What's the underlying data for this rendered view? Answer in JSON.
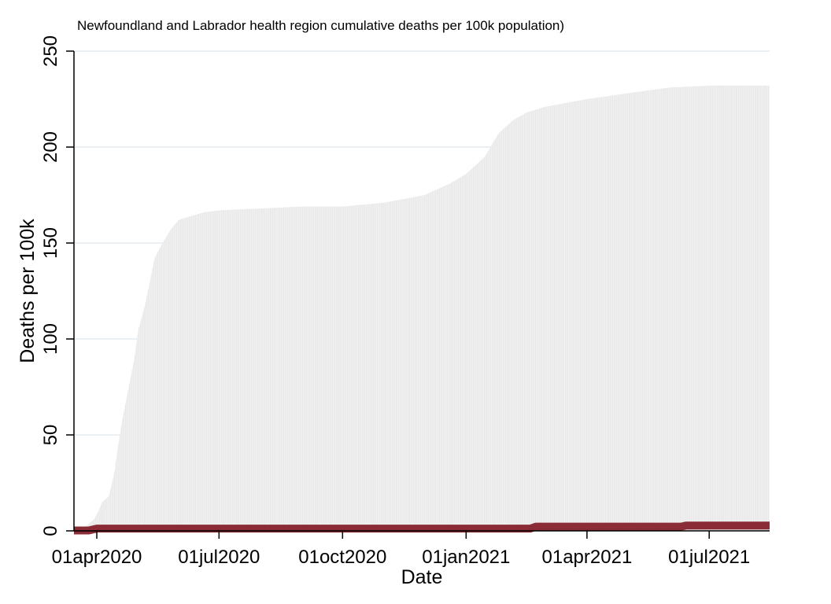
{
  "chart_data": {
    "type": "area",
    "title": "Newfoundland and Labrador health region cumulative deaths per 100k population)",
    "xlabel": "Date",
    "ylabel": "Deaths per 100k",
    "x_type": "date",
    "xlim": [
      "2020-03-15",
      "2021-08-15"
    ],
    "ylim": [
      0,
      250
    ],
    "y_ticks": [
      0,
      50,
      100,
      150,
      200,
      250
    ],
    "x_ticks": [
      {
        "date": "2020-04-01",
        "label": "01apr2020"
      },
      {
        "date": "2020-07-01",
        "label": "01jul2020"
      },
      {
        "date": "2020-10-01",
        "label": "01oct2020"
      },
      {
        "date": "2021-01-01",
        "label": "01jan2021"
      },
      {
        "date": "2021-04-01",
        "label": "01apr2021"
      },
      {
        "date": "2021-07-01",
        "label": "01jul2021"
      }
    ],
    "grid": true,
    "colors": {
      "area_fill": "#f2f2f2",
      "area_line": "#e6e6e6",
      "grid": "#dde7ec",
      "series_line": "#8b2b35",
      "axis": "#000000"
    },
    "series": [
      {
        "style": "area",
        "points": [
          [
            "2020-03-15",
            0
          ],
          [
            "2020-03-20",
            1
          ],
          [
            "2020-03-25",
            3
          ],
          [
            "2020-03-30",
            6
          ],
          [
            "2020-04-02",
            10
          ],
          [
            "2020-04-05",
            15
          ],
          [
            "2020-04-10",
            18
          ],
          [
            "2020-04-14",
            30
          ],
          [
            "2020-04-17",
            45
          ],
          [
            "2020-04-20",
            58
          ],
          [
            "2020-04-24",
            72
          ],
          [
            "2020-04-29",
            90
          ],
          [
            "2020-05-02",
            105
          ],
          [
            "2020-05-06",
            115
          ],
          [
            "2020-05-10",
            128
          ],
          [
            "2020-05-14",
            142
          ],
          [
            "2020-05-20",
            150
          ],
          [
            "2020-05-26",
            157
          ],
          [
            "2020-06-01",
            162
          ],
          [
            "2020-06-10",
            164
          ],
          [
            "2020-06-20",
            166
          ],
          [
            "2020-07-01",
            167
          ],
          [
            "2020-08-01",
            168
          ],
          [
            "2020-09-01",
            169
          ],
          [
            "2020-10-01",
            169
          ],
          [
            "2020-11-01",
            171
          ],
          [
            "2020-12-01",
            175
          ],
          [
            "2020-12-20",
            181
          ],
          [
            "2021-01-01",
            186
          ],
          [
            "2021-01-15",
            195
          ],
          [
            "2021-01-25",
            207
          ],
          [
            "2021-02-05",
            214
          ],
          [
            "2021-02-15",
            218
          ],
          [
            "2021-03-01",
            221
          ],
          [
            "2021-04-01",
            225
          ],
          [
            "2021-05-01",
            228
          ],
          [
            "2021-06-01",
            231
          ],
          [
            "2021-07-01",
            232
          ],
          [
            "2021-08-15",
            232
          ]
        ]
      },
      {
        "style": "line",
        "points": [
          [
            "2020-03-15",
            0.2
          ],
          [
            "2020-03-26",
            0.2
          ],
          [
            "2020-04-01",
            1.2
          ],
          [
            "2021-02-18",
            1.2
          ],
          [
            "2021-02-22",
            2.2
          ],
          [
            "2021-06-10",
            2.2
          ],
          [
            "2021-06-14",
            2.8
          ],
          [
            "2021-08-15",
            2.8
          ]
        ]
      }
    ]
  }
}
